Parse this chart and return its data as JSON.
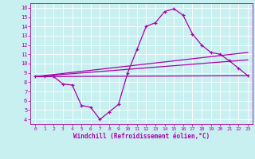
{
  "xlabel": "Windchill (Refroidissement éolien,°C)",
  "background_color": "#c8f0f0",
  "line_color": "#aa00aa",
  "xlim": [
    -0.5,
    23.5
  ],
  "ylim": [
    3.5,
    16.5
  ],
  "xticks": [
    0,
    1,
    2,
    3,
    4,
    5,
    6,
    7,
    8,
    9,
    10,
    11,
    12,
    13,
    14,
    15,
    16,
    17,
    18,
    19,
    20,
    21,
    22,
    23
  ],
  "yticks": [
    4,
    5,
    6,
    7,
    8,
    9,
    10,
    11,
    12,
    13,
    14,
    15,
    16
  ],
  "series": [
    {
      "name": "main_zigzag",
      "x": [
        0,
        1,
        2,
        3,
        4,
        5,
        6,
        7,
        8,
        9,
        10,
        11,
        12,
        13,
        14,
        15,
        16,
        17,
        18,
        19,
        20,
        21,
        22,
        23
      ],
      "y": [
        8.6,
        8.6,
        8.6,
        7.8,
        7.7,
        5.5,
        5.3,
        4.0,
        4.8,
        5.6,
        9.0,
        11.5,
        14.0,
        14.4,
        15.6,
        15.9,
        15.2,
        13.2,
        12.0,
        11.2,
        11.0,
        10.3,
        9.5,
        8.7
      ],
      "marker": "+",
      "linewidth": 0.9,
      "markersize": 3.5
    },
    {
      "name": "linear_high",
      "x": [
        0,
        23
      ],
      "y": [
        8.6,
        11.2
      ],
      "marker": null,
      "linewidth": 0.9,
      "markersize": 0
    },
    {
      "name": "linear_mid",
      "x": [
        0,
        23
      ],
      "y": [
        8.6,
        10.4
      ],
      "marker": null,
      "linewidth": 0.9,
      "markersize": 0
    },
    {
      "name": "linear_flat",
      "x": [
        0,
        23
      ],
      "y": [
        8.6,
        8.7
      ],
      "marker": null,
      "linewidth": 0.9,
      "markersize": 0
    }
  ]
}
